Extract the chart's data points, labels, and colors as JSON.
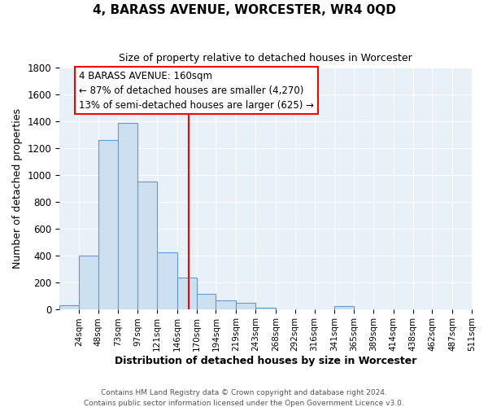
{
  "title": "4, BARASS AVENUE, WORCESTER, WR4 0QD",
  "subtitle": "Size of property relative to detached houses in Worcester",
  "xlabel": "Distribution of detached houses by size in Worcester",
  "ylabel": "Number of detached properties",
  "bar_values": [
    25,
    400,
    1260,
    1390,
    950,
    425,
    235,
    110,
    65,
    45,
    10,
    0,
    0,
    0,
    20,
    0,
    0,
    0,
    0,
    0,
    0
  ],
  "tick_positions": [
    24,
    48,
    73,
    97,
    121,
    146,
    170,
    194,
    219,
    243,
    268,
    292,
    316,
    341,
    365,
    389,
    414,
    438,
    462,
    487,
    511
  ],
  "tick_labels": [
    "24sqm",
    "48sqm",
    "73sqm",
    "97sqm",
    "121sqm",
    "146sqm",
    "170sqm",
    "194sqm",
    "219sqm",
    "243sqm",
    "268sqm",
    "292sqm",
    "316sqm",
    "341sqm",
    "365sqm",
    "389sqm",
    "414sqm",
    "438sqm",
    "462sqm",
    "487sqm",
    "511sqm"
  ],
  "bar_color": "#cce0f0",
  "bar_edge_color": "#6699cc",
  "vline_x": 160,
  "vline_color": "red",
  "ylim": [
    0,
    1800
  ],
  "yticks": [
    0,
    200,
    400,
    600,
    800,
    1000,
    1200,
    1400,
    1600,
    1800
  ],
  "annotation_title": "4 BARASS AVENUE: 160sqm",
  "annotation_line1": "← 87% of detached houses are smaller (4,270)",
  "annotation_line2": "13% of semi-detached houses are larger (625) →",
  "annotation_box_color": "red",
  "footer1": "Contains HM Land Registry data © Crown copyright and database right 2024.",
  "footer2": "Contains public sector information licensed under the Open Government Licence v3.0.",
  "background_color": "#ffffff",
  "plot_bg_color": "#e8f0f8",
  "grid_color": "#ffffff",
  "xlabel_bold": true,
  "xlim_start": 0,
  "xlim_end": 511
}
